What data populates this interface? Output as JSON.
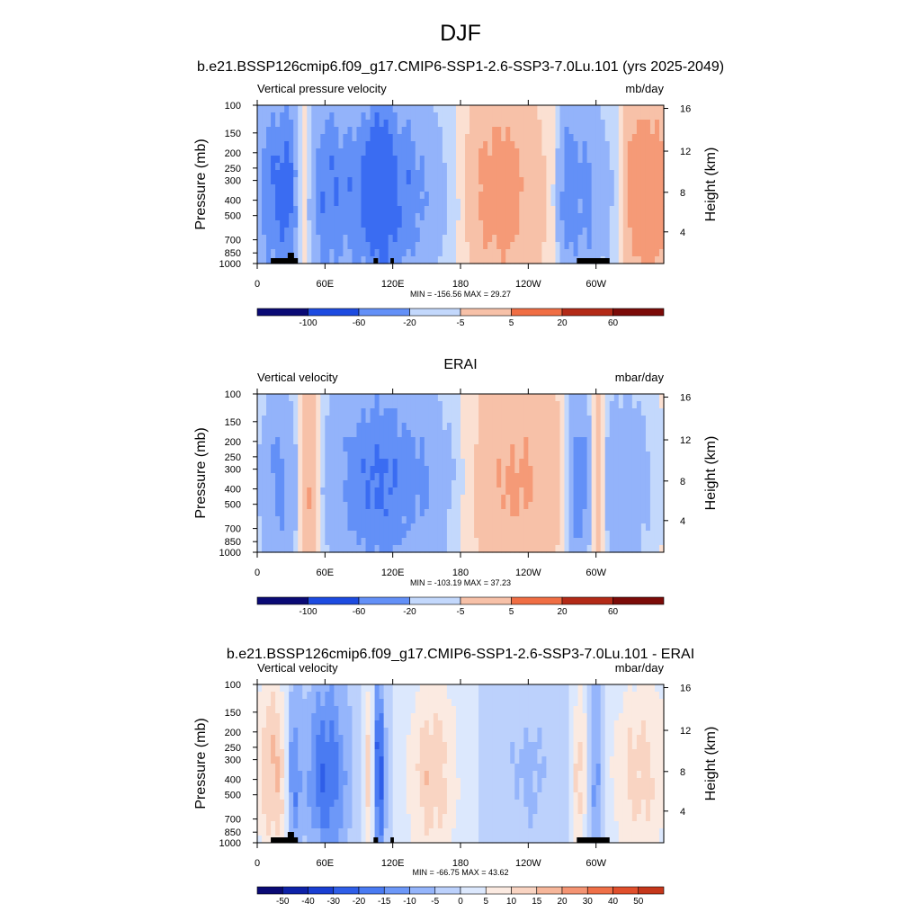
{
  "figure": {
    "title": "DJF",
    "colors": {
      "rdbu_14": [
        "#0a0a75",
        "#0e2bb8",
        "#1d4be0",
        "#3a6cf2",
        "#6390f7",
        "#93b3fa",
        "#c3d8fc",
        "#fbe0d2",
        "#f7c1a8",
        "#f59a77",
        "#f06e44",
        "#dc4526",
        "#b32a17",
        "#7c0b08"
      ],
      "rdbu_20": [
        "#0a0a75",
        "#0e22a8",
        "#1a3fd2",
        "#2f5ee8",
        "#4a7bf2",
        "#6d98f8",
        "#95b5fb",
        "#bcd1fc",
        "#dce8fd",
        "#fbeae1",
        "#f9d4c2",
        "#f6b69a",
        "#f49473",
        "#ef7048",
        "#e04f2c",
        "#c5371b",
        "#a52312",
        "#7c0b08"
      ]
    }
  },
  "chart_data": [
    {
      "type": "heatmap",
      "title": "b.e21.BSSP126cmip6.f09_g17.CMIP6-SSP1-2.6-SSP3-7.0Lu.101 (yrs 2025-2049)",
      "left_label": "Vertical pressure velocity",
      "right_label": "mb/day",
      "ylabel": "Pressure (mb)",
      "y2label": "Height (km)",
      "x_ticks": [
        "0",
        "60E",
        "120E",
        "180",
        "120W",
        "60W"
      ],
      "x_range": [
        0,
        360
      ],
      "y_ticks": [
        "100",
        "150",
        "200",
        "250",
        "300",
        "400",
        "500",
        "700",
        "850",
        "1000"
      ],
      "y2_ticks": [
        "16",
        "12",
        "8",
        "4"
      ],
      "stats": "MIN = -156.56  MAX =  29.27",
      "levels": [
        -100,
        -60,
        -20,
        -5,
        5,
        20,
        60
      ],
      "scale": 1.0,
      "topography": true,
      "features": [
        {
          "lon": 12,
          "width": 8,
          "value": -95
        },
        {
          "lon": 27,
          "width": 6,
          "value": -110
        },
        {
          "lon": 42,
          "width": 4,
          "value": 30
        },
        {
          "lon": 60,
          "width": 10,
          "value": -55
        },
        {
          "lon": 85,
          "width": 22,
          "value": -80
        },
        {
          "lon": 110,
          "width": 10,
          "value": -125
        },
        {
          "lon": 135,
          "width": 12,
          "value": -70
        },
        {
          "lon": 160,
          "width": 15,
          "value": -25
        },
        {
          "lon": 215,
          "width": 22,
          "value": 30
        },
        {
          "lon": 275,
          "width": 6,
          "value": -85
        },
        {
          "lon": 292,
          "width": 8,
          "value": -75
        },
        {
          "lon": 312,
          "width": 8,
          "value": -35
        },
        {
          "lon": 345,
          "width": 22,
          "value": 35
        }
      ]
    },
    {
      "type": "heatmap",
      "title": "ERAI",
      "left_label": "Vertical velocity",
      "right_label": "mbar/day",
      "ylabel": "Pressure (mb)",
      "y2label": "Height (km)",
      "x_ticks": [
        "0",
        "60E",
        "120E",
        "180",
        "120W",
        "60W"
      ],
      "x_range": [
        0,
        360
      ],
      "y_ticks": [
        "100",
        "150",
        "200",
        "250",
        "300",
        "400",
        "500",
        "700",
        "850",
        "1000"
      ],
      "y2_ticks": [
        "16",
        "12",
        "8",
        "4"
      ],
      "stats": "MIN = -103.19  MAX =  37.23",
      "levels": [
        -100,
        -60,
        -20,
        -5,
        5,
        20,
        60
      ],
      "scale": 1.0,
      "topography": false,
      "features": [
        {
          "lon": 20,
          "width": 12,
          "value": -70
        },
        {
          "lon": 45,
          "width": 8,
          "value": 35
        },
        {
          "lon": 80,
          "width": 18,
          "value": -55
        },
        {
          "lon": 110,
          "width": 16,
          "value": -80
        },
        {
          "lon": 145,
          "width": 20,
          "value": -60
        },
        {
          "lon": 230,
          "width": 28,
          "value": 22
        },
        {
          "lon": 285,
          "width": 6,
          "value": -85
        },
        {
          "lon": 302,
          "width": 4,
          "value": 37
        },
        {
          "lon": 325,
          "width": 18,
          "value": -45
        }
      ]
    },
    {
      "type": "heatmap",
      "title": "b.e21.BSSP126cmip6.f09_g17.CMIP6-SSP1-2.6-SSP3-7.0Lu.101 - ERAI",
      "left_label": "Vertical velocity",
      "right_label": "mbar/day",
      "ylabel": "Pressure (mb)",
      "y2label": "Height (km)",
      "x_ticks": [
        "0",
        "60E",
        "120E",
        "180",
        "120W",
        "60W"
      ],
      "x_range": [
        0,
        360
      ],
      "y_ticks": [
        "100",
        "150",
        "200",
        "250",
        "300",
        "400",
        "500",
        "700",
        "850",
        "1000"
      ],
      "y2_ticks": [
        "16",
        "12",
        "8",
        "4"
      ],
      "stats": "MIN = -66.75  MAX =  43.62",
      "levels": [
        -50,
        -40,
        -30,
        -20,
        -15,
        -10,
        -5,
        0,
        5,
        10,
        15,
        20,
        30,
        40,
        50
      ],
      "scale": 0.4,
      "topography": true,
      "features": [
        {
          "lon": 15,
          "width": 12,
          "value": 40
        },
        {
          "lon": 32,
          "width": 5,
          "value": -45
        },
        {
          "lon": 62,
          "width": 14,
          "value": -50
        },
        {
          "lon": 100,
          "width": 3,
          "value": 40
        },
        {
          "lon": 108,
          "width": 4,
          "value": -60
        },
        {
          "lon": 155,
          "width": 16,
          "value": 35
        },
        {
          "lon": 240,
          "width": 20,
          "value": -15
        },
        {
          "lon": 285,
          "width": 5,
          "value": 30
        },
        {
          "lon": 300,
          "width": 4,
          "value": -35
        },
        {
          "lon": 340,
          "width": 20,
          "value": 30
        }
      ]
    }
  ]
}
